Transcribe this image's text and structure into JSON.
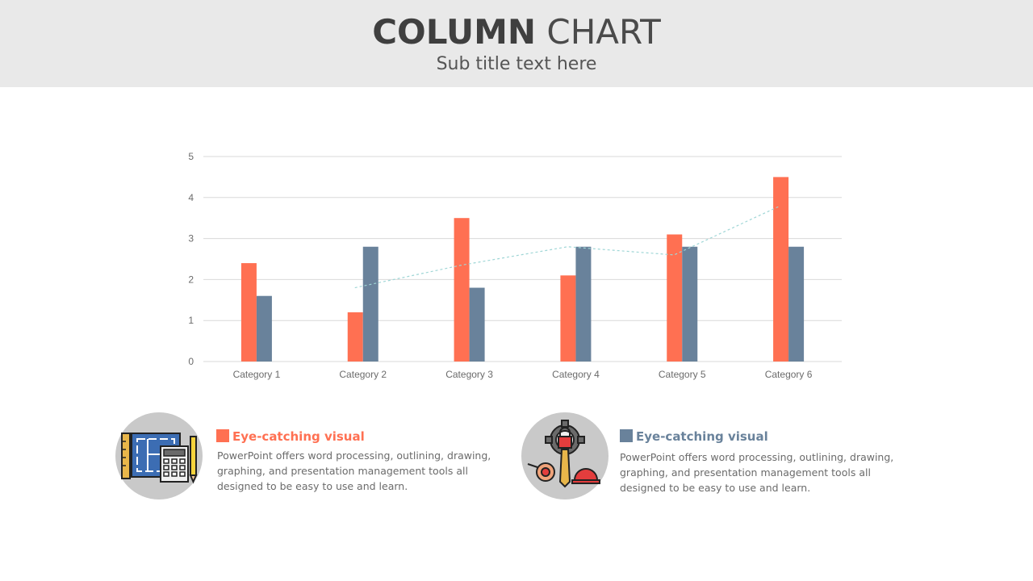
{
  "header": {
    "title_bold": "COLUMN",
    "title_light": "CHART",
    "subtitle": "Sub title text here"
  },
  "colors": {
    "series1": "#ff7052",
    "series2": "#69829b",
    "trend": "#9fd6d6",
    "grid": "#d9d9d9",
    "header_bg": "#e9e9e9"
  },
  "chart_data": {
    "type": "bar",
    "categories": [
      "Category 1",
      "Category 2",
      "Category 3",
      "Category 4",
      "Category 5",
      "Category 6"
    ],
    "series": [
      {
        "values": [
          2.4,
          1.2,
          3.5,
          2.1,
          3.1,
          4.5
        ]
      },
      {
        "values": [
          1.6,
          2.8,
          1.8,
          2.8,
          2.8,
          2.8
        ]
      }
    ],
    "trendline": {
      "type": "line",
      "style": "dashed",
      "x": [
        "Category 2",
        "Category 3",
        "Category 4",
        "Category 5",
        "Category 6"
      ],
      "values": [
        1.8,
        2.35,
        2.8,
        2.6,
        3.8
      ]
    },
    "yticks": [
      "0",
      "1",
      "2",
      "3",
      "4",
      "5"
    ],
    "ylim": [
      0,
      5
    ],
    "grid": true,
    "legend": "none"
  },
  "cards": [
    {
      "icon": "blueprint-calculator-icon",
      "heading": "Eye-catching visual",
      "heading_color": "#ff7052",
      "text": "PowerPoint offers word processing, outlining, drawing, graphing, and presentation management tools all designed to be easy to use and learn."
    },
    {
      "icon": "gear-tools-icon",
      "heading": "Eye-catching visual",
      "heading_color": "#69829b",
      "text": "PowerPoint offers word processing, outlining, drawing, graphing, and presentation management tools all designed to be easy to use and learn."
    }
  ]
}
